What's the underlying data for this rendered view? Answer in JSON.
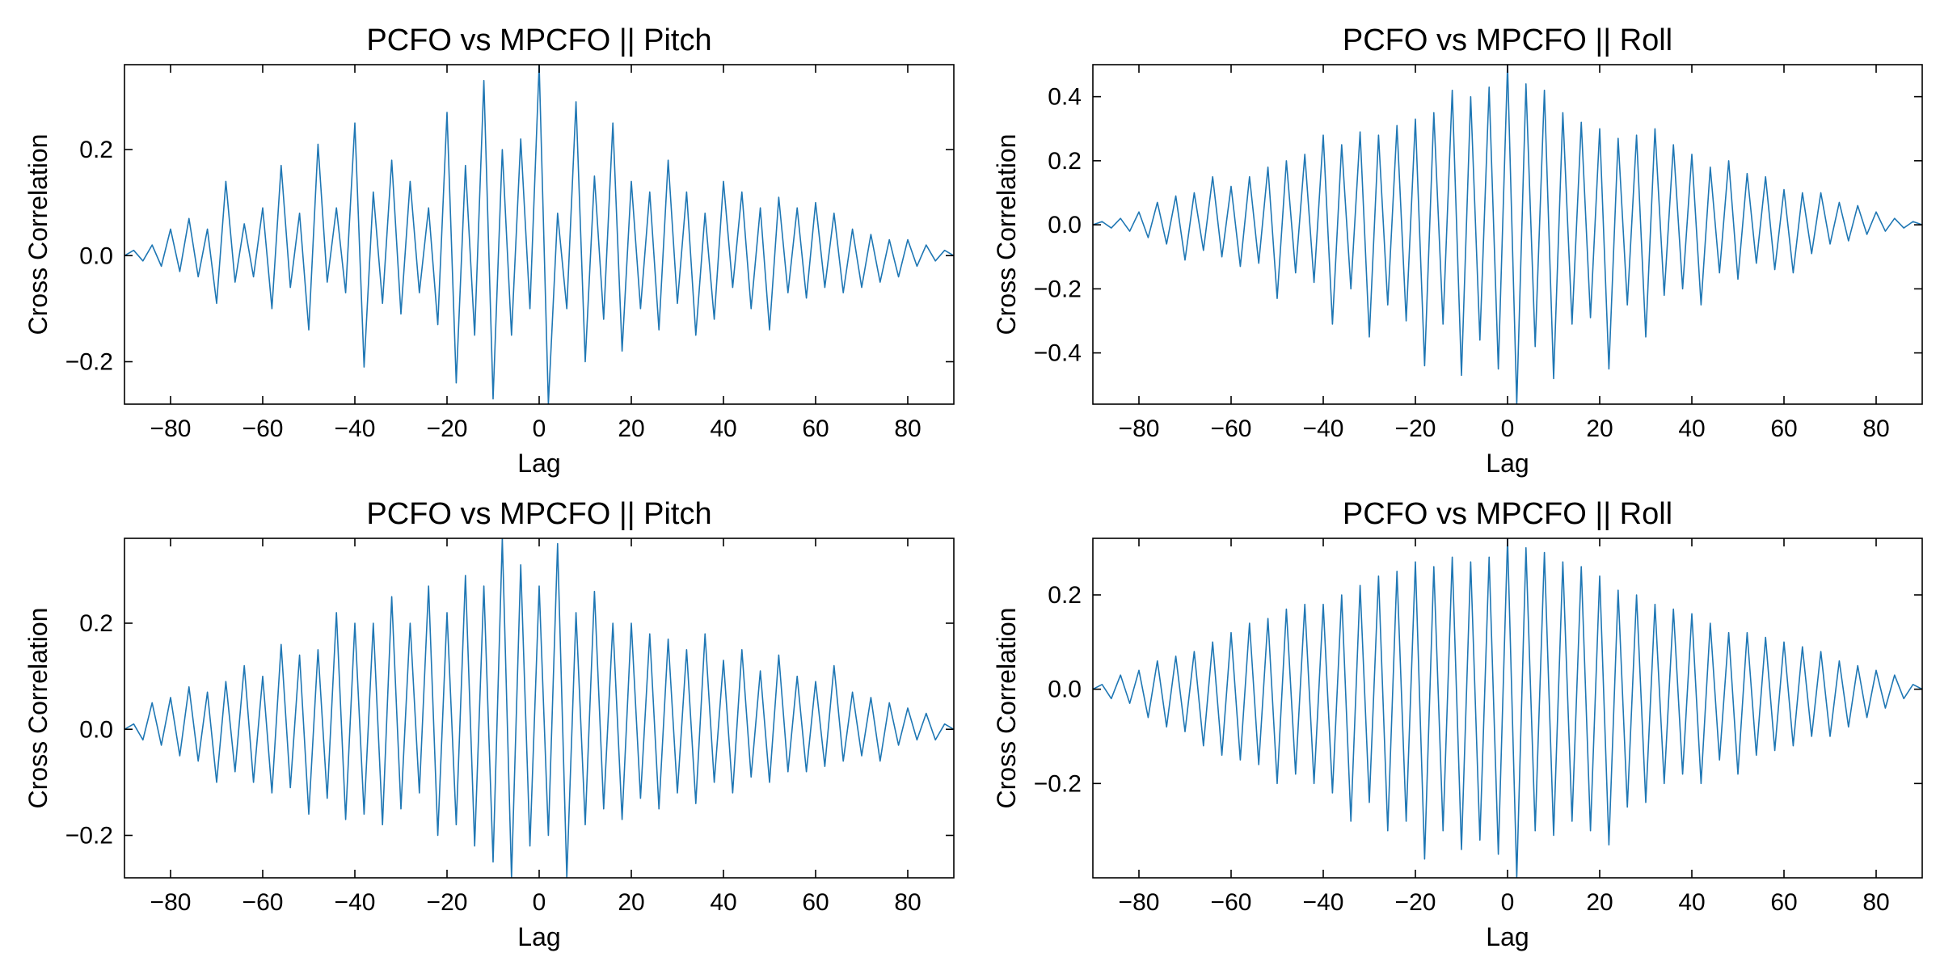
{
  "figure": {
    "line_color": "#1f77b4",
    "axis_color": "#000000",
    "background": "#ffffff"
  },
  "chart_data": [
    {
      "type": "line",
      "title": "PCFO vs MPCFO || Pitch",
      "xlabel": "Lag",
      "ylabel": "Cross Correlation",
      "xlim": [
        -90,
        90
      ],
      "ylim": [
        -0.28,
        0.36
      ],
      "xticks": [
        -80,
        -60,
        -40,
        -20,
        0,
        20,
        40,
        60,
        80
      ],
      "yticks": [
        -0.2,
        0.0,
        0.2
      ],
      "xtick_labels": [
        "−80",
        "−60",
        "−40",
        "−20",
        "0",
        "20",
        "40",
        "60",
        "80"
      ],
      "ytick_labels": [
        "−0.2",
        "0.0",
        "0.2"
      ],
      "grid": false,
      "series": [
        {
          "color": "#1f77b4",
          "x": [
            -90,
            -88,
            -86,
            -84,
            -82,
            -80,
            -78,
            -76,
            -74,
            -72,
            -70,
            -68,
            -66,
            -64,
            -62,
            -60,
            -58,
            -56,
            -54,
            -52,
            -50,
            -48,
            -46,
            -44,
            -42,
            -40,
            -38,
            -36,
            -34,
            -32,
            -30,
            -28,
            -26,
            -24,
            -22,
            -20,
            -18,
            -16,
            -14,
            -12,
            -10,
            -8,
            -6,
            -4,
            -2,
            0,
            2,
            4,
            6,
            8,
            10,
            12,
            14,
            16,
            18,
            20,
            22,
            24,
            26,
            28,
            30,
            32,
            34,
            36,
            38,
            40,
            42,
            44,
            46,
            48,
            50,
            52,
            54,
            56,
            58,
            60,
            62,
            64,
            66,
            68,
            70,
            72,
            74,
            76,
            78,
            80,
            82,
            84,
            86,
            88,
            90
          ],
          "y": [
            0.0,
            0.01,
            -0.01,
            0.02,
            -0.02,
            0.05,
            -0.03,
            0.07,
            -0.04,
            0.05,
            -0.09,
            0.14,
            -0.05,
            0.06,
            -0.04,
            0.09,
            -0.1,
            0.17,
            -0.06,
            0.08,
            -0.14,
            0.21,
            -0.05,
            0.09,
            -0.07,
            0.25,
            -0.21,
            0.12,
            -0.09,
            0.18,
            -0.11,
            0.14,
            -0.07,
            0.09,
            -0.13,
            0.27,
            -0.24,
            0.17,
            -0.15,
            0.33,
            -0.27,
            0.2,
            -0.15,
            0.22,
            -0.1,
            0.36,
            -0.28,
            0.08,
            -0.1,
            0.29,
            -0.2,
            0.15,
            -0.12,
            0.25,
            -0.18,
            0.14,
            -0.1,
            0.12,
            -0.14,
            0.18,
            -0.09,
            0.12,
            -0.15,
            0.08,
            -0.12,
            0.14,
            -0.06,
            0.12,
            -0.1,
            0.09,
            -0.14,
            0.11,
            -0.07,
            0.09,
            -0.08,
            0.1,
            -0.06,
            0.08,
            -0.07,
            0.05,
            -0.06,
            0.04,
            -0.05,
            0.03,
            -0.04,
            0.03,
            -0.02,
            0.02,
            -0.01,
            0.01,
            0.0
          ]
        }
      ]
    },
    {
      "type": "line",
      "title": "PCFO vs MPCFO || Roll",
      "xlabel": "Lag",
      "ylabel": "Cross Correlation",
      "xlim": [
        -90,
        90
      ],
      "ylim": [
        -0.56,
        0.5
      ],
      "xticks": [
        -80,
        -60,
        -40,
        -20,
        0,
        20,
        40,
        60,
        80
      ],
      "yticks": [
        -0.4,
        -0.2,
        0.0,
        0.2,
        0.4
      ],
      "xtick_labels": [
        "−80",
        "−60",
        "−40",
        "−20",
        "0",
        "20",
        "40",
        "60",
        "80"
      ],
      "ytick_labels": [
        "−0.4",
        "−0.2",
        "0.0",
        "0.2",
        "0.4"
      ],
      "grid": false,
      "series": [
        {
          "color": "#1f77b4",
          "x": [
            -90,
            -88,
            -86,
            -84,
            -82,
            -80,
            -78,
            -76,
            -74,
            -72,
            -70,
            -68,
            -66,
            -64,
            -62,
            -60,
            -58,
            -56,
            -54,
            -52,
            -50,
            -48,
            -46,
            -44,
            -42,
            -40,
            -38,
            -36,
            -34,
            -32,
            -30,
            -28,
            -26,
            -24,
            -22,
            -20,
            -18,
            -16,
            -14,
            -12,
            -10,
            -8,
            -6,
            -4,
            -2,
            0,
            2,
            4,
            6,
            8,
            10,
            12,
            14,
            16,
            18,
            20,
            22,
            24,
            26,
            28,
            30,
            32,
            34,
            36,
            38,
            40,
            42,
            44,
            46,
            48,
            50,
            52,
            54,
            56,
            58,
            60,
            62,
            64,
            66,
            68,
            70,
            72,
            74,
            76,
            78,
            80,
            82,
            84,
            86,
            88,
            90
          ],
          "y": [
            0.0,
            0.01,
            -0.01,
            0.02,
            -0.02,
            0.04,
            -0.04,
            0.07,
            -0.06,
            0.09,
            -0.11,
            0.1,
            -0.08,
            0.15,
            -0.1,
            0.12,
            -0.13,
            0.15,
            -0.12,
            0.18,
            -0.23,
            0.2,
            -0.15,
            0.22,
            -0.18,
            0.28,
            -0.31,
            0.25,
            -0.2,
            0.29,
            -0.35,
            0.28,
            -0.25,
            0.31,
            -0.3,
            0.33,
            -0.44,
            0.35,
            -0.31,
            0.42,
            -0.47,
            0.4,
            -0.36,
            0.43,
            -0.45,
            0.5,
            -0.56,
            0.44,
            -0.38,
            0.42,
            -0.48,
            0.35,
            -0.31,
            0.32,
            -0.29,
            0.3,
            -0.45,
            0.27,
            -0.25,
            0.28,
            -0.35,
            0.3,
            -0.22,
            0.25,
            -0.2,
            0.22,
            -0.25,
            0.18,
            -0.15,
            0.2,
            -0.17,
            0.16,
            -0.12,
            0.15,
            -0.14,
            0.11,
            -0.15,
            0.1,
            -0.09,
            0.1,
            -0.06,
            0.07,
            -0.05,
            0.06,
            -0.03,
            0.04,
            -0.02,
            0.02,
            -0.01,
            0.01,
            0.0
          ]
        }
      ]
    },
    {
      "type": "line",
      "title": "PCFO vs MPCFO || Pitch",
      "xlabel": "Lag",
      "ylabel": "Cross Correlation",
      "xlim": [
        -90,
        90
      ],
      "ylim": [
        -0.28,
        0.36
      ],
      "xticks": [
        -80,
        -60,
        -40,
        -20,
        0,
        20,
        40,
        60,
        80
      ],
      "yticks": [
        -0.2,
        0.0,
        0.2
      ],
      "xtick_labels": [
        "−80",
        "−60",
        "−40",
        "−20",
        "0",
        "20",
        "40",
        "60",
        "80"
      ],
      "ytick_labels": [
        "−0.2",
        "0.0",
        "0.2"
      ],
      "grid": false,
      "series": [
        {
          "color": "#1f77b4",
          "x": [
            -90,
            -88,
            -86,
            -84,
            -82,
            -80,
            -78,
            -76,
            -74,
            -72,
            -70,
            -68,
            -66,
            -64,
            -62,
            -60,
            -58,
            -56,
            -54,
            -52,
            -50,
            -48,
            -46,
            -44,
            -42,
            -40,
            -38,
            -36,
            -34,
            -32,
            -30,
            -28,
            -26,
            -24,
            -22,
            -20,
            -18,
            -16,
            -14,
            -12,
            -10,
            -8,
            -6,
            -4,
            -2,
            0,
            2,
            4,
            6,
            8,
            10,
            12,
            14,
            16,
            18,
            20,
            22,
            24,
            26,
            28,
            30,
            32,
            34,
            36,
            38,
            40,
            42,
            44,
            46,
            48,
            50,
            52,
            54,
            56,
            58,
            60,
            62,
            64,
            66,
            68,
            70,
            72,
            74,
            76,
            78,
            80,
            82,
            84,
            86,
            88,
            90
          ],
          "y": [
            0.0,
            0.01,
            -0.02,
            0.05,
            -0.03,
            0.06,
            -0.05,
            0.08,
            -0.06,
            0.07,
            -0.1,
            0.09,
            -0.08,
            0.12,
            -0.1,
            0.1,
            -0.12,
            0.16,
            -0.11,
            0.14,
            -0.16,
            0.15,
            -0.13,
            0.22,
            -0.17,
            0.2,
            -0.16,
            0.2,
            -0.18,
            0.25,
            -0.15,
            0.2,
            -0.12,
            0.27,
            -0.2,
            0.22,
            -0.18,
            0.29,
            -0.22,
            0.27,
            -0.25,
            0.36,
            -0.28,
            0.31,
            -0.22,
            0.27,
            -0.2,
            0.35,
            -0.28,
            0.22,
            -0.18,
            0.26,
            -0.15,
            0.2,
            -0.17,
            0.2,
            -0.13,
            0.18,
            -0.15,
            0.17,
            -0.12,
            0.15,
            -0.14,
            0.18,
            -0.1,
            0.13,
            -0.12,
            0.15,
            -0.09,
            0.11,
            -0.1,
            0.14,
            -0.08,
            0.1,
            -0.08,
            0.09,
            -0.07,
            0.12,
            -0.06,
            0.07,
            -0.05,
            0.06,
            -0.06,
            0.05,
            -0.03,
            0.04,
            -0.02,
            0.03,
            -0.02,
            0.01,
            0.0
          ]
        }
      ]
    },
    {
      "type": "line",
      "title": "PCFO vs MPCFO || Roll",
      "xlabel": "Lag",
      "ylabel": "Cross Correlation",
      "xlim": [
        -90,
        90
      ],
      "ylim": [
        -0.4,
        0.32
      ],
      "xticks": [
        -80,
        -60,
        -40,
        -20,
        0,
        20,
        40,
        60,
        80
      ],
      "yticks": [
        -0.2,
        0.0,
        0.2
      ],
      "xtick_labels": [
        "−80",
        "−60",
        "−40",
        "−20",
        "0",
        "20",
        "40",
        "60",
        "80"
      ],
      "ytick_labels": [
        "−0.2",
        "0.0",
        "0.2"
      ],
      "grid": false,
      "series": [
        {
          "color": "#1f77b4",
          "x": [
            -90,
            -88,
            -86,
            -84,
            -82,
            -80,
            -78,
            -76,
            -74,
            -72,
            -70,
            -68,
            -66,
            -64,
            -62,
            -60,
            -58,
            -56,
            -54,
            -52,
            -50,
            -48,
            -46,
            -44,
            -42,
            -40,
            -38,
            -36,
            -34,
            -32,
            -30,
            -28,
            -26,
            -24,
            -22,
            -20,
            -18,
            -16,
            -14,
            -12,
            -10,
            -8,
            -6,
            -4,
            -2,
            0,
            2,
            4,
            6,
            8,
            10,
            12,
            14,
            16,
            18,
            20,
            22,
            24,
            26,
            28,
            30,
            32,
            34,
            36,
            38,
            40,
            42,
            44,
            46,
            48,
            50,
            52,
            54,
            56,
            58,
            60,
            62,
            64,
            66,
            68,
            70,
            72,
            74,
            76,
            78,
            80,
            82,
            84,
            86,
            88,
            90
          ],
          "y": [
            0.0,
            0.01,
            -0.02,
            0.03,
            -0.03,
            0.04,
            -0.06,
            0.06,
            -0.08,
            0.07,
            -0.09,
            0.08,
            -0.12,
            0.1,
            -0.14,
            0.12,
            -0.15,
            0.14,
            -0.16,
            0.15,
            -0.2,
            0.17,
            -0.18,
            0.18,
            -0.2,
            0.18,
            -0.22,
            0.2,
            -0.28,
            0.22,
            -0.24,
            0.24,
            -0.3,
            0.25,
            -0.28,
            0.27,
            -0.36,
            0.26,
            -0.3,
            0.28,
            -0.34,
            0.27,
            -0.32,
            0.28,
            -0.35,
            0.32,
            -0.4,
            0.3,
            -0.3,
            0.29,
            -0.31,
            0.27,
            -0.28,
            0.26,
            -0.3,
            0.24,
            -0.33,
            0.21,
            -0.25,
            0.2,
            -0.24,
            0.18,
            -0.2,
            0.17,
            -0.18,
            0.16,
            -0.2,
            0.14,
            -0.15,
            0.12,
            -0.18,
            0.12,
            -0.14,
            0.11,
            -0.13,
            0.1,
            -0.12,
            0.09,
            -0.1,
            0.08,
            -0.1,
            0.06,
            -0.08,
            0.05,
            -0.06,
            0.04,
            -0.04,
            0.03,
            -0.02,
            0.01,
            0.0
          ]
        }
      ]
    }
  ]
}
